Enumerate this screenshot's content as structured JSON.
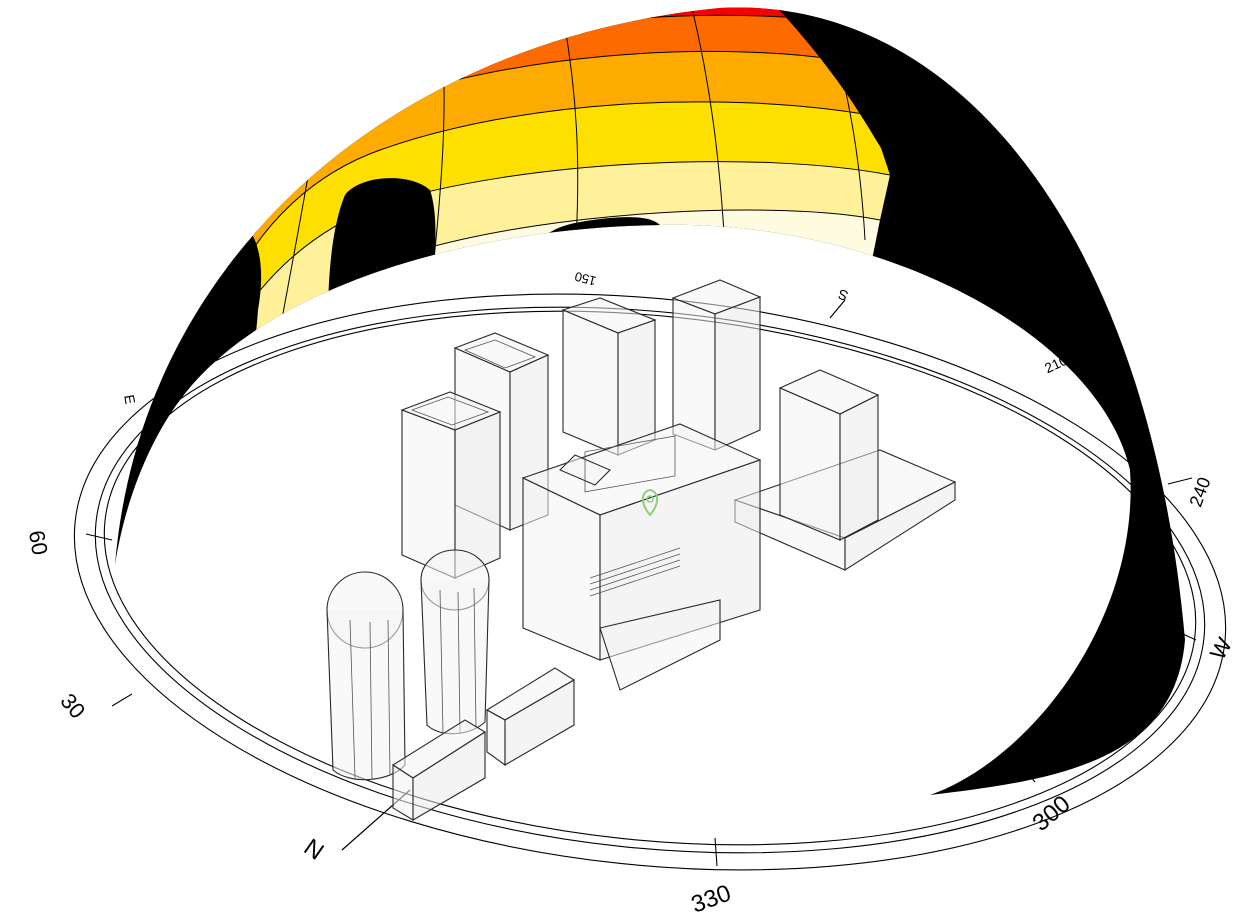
{
  "compass": {
    "north_label": "N",
    "east_label": "E",
    "south_label": "S",
    "west_label": "W",
    "degree_labels": {
      "d30": "30",
      "d60": "60",
      "d150": "150",
      "d210": "210",
      "d240": "240",
      "d300": "300",
      "d330": "330"
    }
  },
  "colors": {
    "shadow": "#000000",
    "band_top": "#f70000",
    "band_2": "#fd6a00",
    "band_3": "#fdab00",
    "band_4": "#fde000",
    "band_5": "#fff09a",
    "band_6": "#fffbe0",
    "location_marker": "#8fcf78"
  },
  "icons": {
    "location": "map-pin-icon"
  }
}
